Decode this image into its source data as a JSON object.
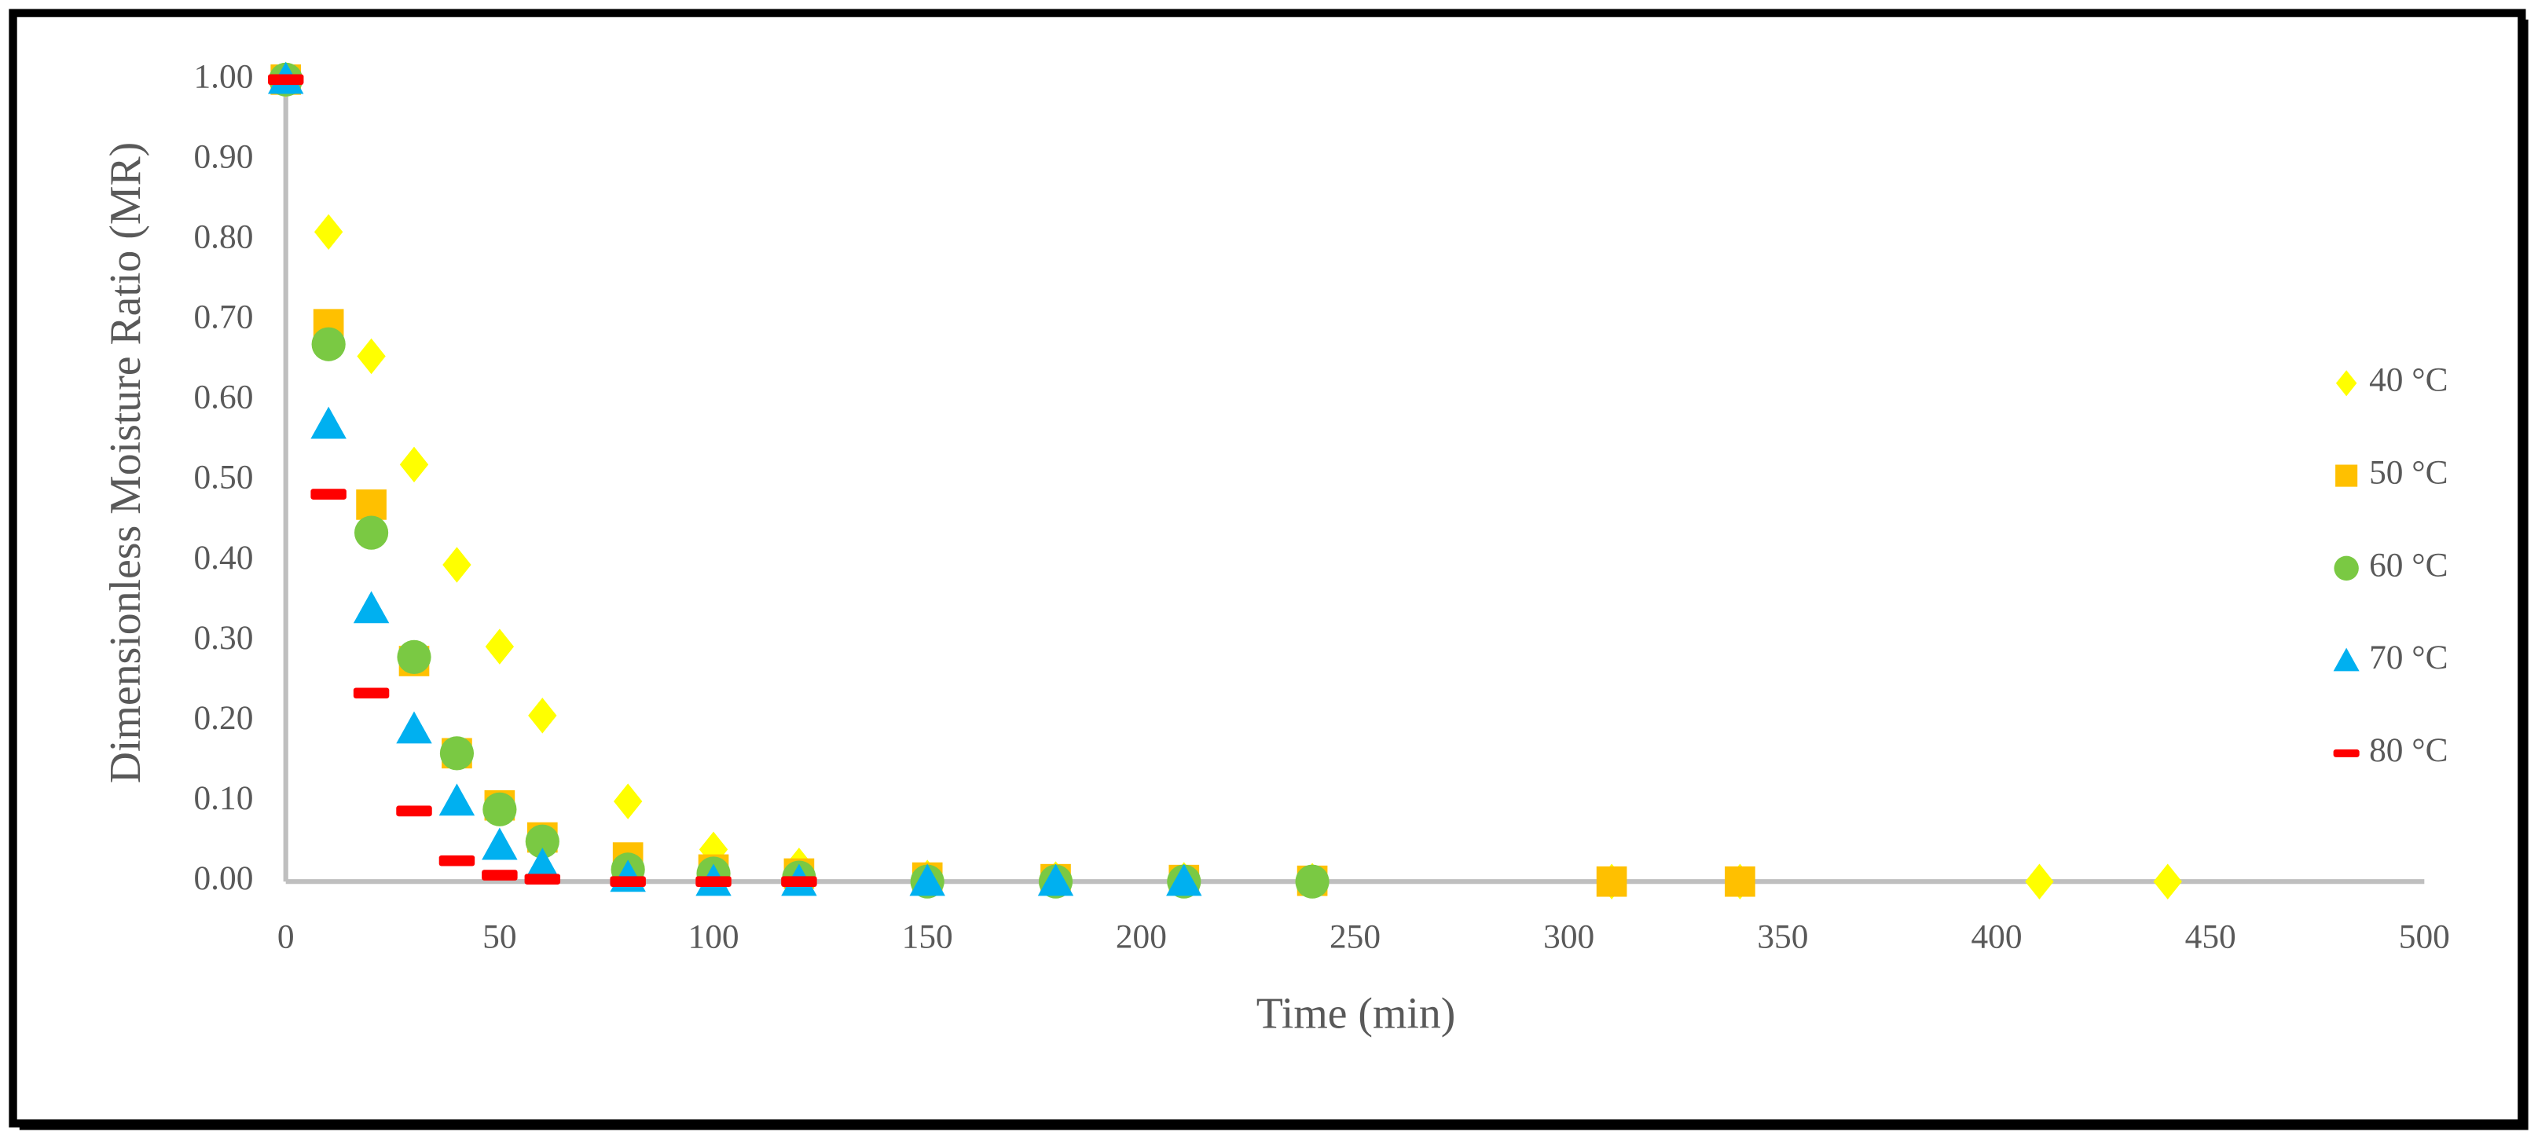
{
  "chart_data": {
    "type": "scatter",
    "xlabel": "Time (min)",
    "ylabel": "Dimensionless Moisture Ratio (MR)",
    "xlim": [
      0,
      500
    ],
    "xticks": [
      0,
      50,
      100,
      150,
      200,
      250,
      300,
      350,
      400,
      450,
      500
    ],
    "ylim": [
      0,
      1
    ],
    "yticks": [
      {
        "value": 0,
        "label": "0.00"
      },
      {
        "value": 0.1,
        "label": "0.10"
      },
      {
        "value": 0.2,
        "label": "0.20"
      },
      {
        "value": 0.3,
        "label": "0.30"
      },
      {
        "value": 0.4,
        "label": "0.40"
      },
      {
        "value": 0.5,
        "label": "0.50"
      },
      {
        "value": 0.6,
        "label": "0.60"
      },
      {
        "value": 0.7,
        "label": "0.70"
      },
      {
        "value": 0.8,
        "label": "0.80"
      },
      {
        "value": 0.9,
        "label": "0.90"
      },
      {
        "value": 1,
        "label": "1.00"
      }
    ],
    "grid": false,
    "legend": "right",
    "series": [
      {
        "name": "40 °C",
        "color": "#ffff00",
        "marker": "diamond",
        "x": [
          0,
          10,
          20,
          30,
          40,
          50,
          60,
          80,
          100,
          120,
          150,
          180,
          210,
          240,
          310,
          340,
          410,
          440
        ],
        "values": [
          1,
          0.81,
          0.655,
          0.52,
          0.395,
          0.293,
          0.207,
          0.1,
          0.04,
          0.02,
          0.005,
          0.003,
          0.002,
          0.001,
          0,
          0,
          0,
          0
        ]
      },
      {
        "name": "50 °C",
        "color": "#ffc000",
        "marker": "square",
        "x": [
          0,
          10,
          20,
          30,
          40,
          50,
          60,
          80,
          100,
          120,
          150,
          180,
          210,
          240,
          310,
          340
        ],
        "values": [
          1,
          0.695,
          0.47,
          0.275,
          0.16,
          0.095,
          0.055,
          0.03,
          0.015,
          0.01,
          0.005,
          0.003,
          0.002,
          0.001,
          0,
          0
        ]
      },
      {
        "name": "60 °C",
        "color": "#7ac943",
        "marker": "circle",
        "x": [
          0,
          10,
          20,
          30,
          40,
          50,
          60,
          80,
          100,
          120,
          150,
          180,
          210,
          240
        ],
        "values": [
          1,
          0.67,
          0.435,
          0.28,
          0.16,
          0.09,
          0.05,
          0.015,
          0.01,
          0.005,
          0,
          0,
          0,
          0
        ]
      },
      {
        "name": "70 °C",
        "color": "#00b0f0",
        "marker": "triangle",
        "x": [
          0,
          10,
          20,
          30,
          40,
          50,
          60,
          80,
          100,
          120,
          150,
          180,
          210
        ],
        "values": [
          1,
          0.57,
          0.34,
          0.19,
          0.1,
          0.045,
          0.02,
          0.005,
          0,
          0,
          0,
          0,
          0
        ]
      },
      {
        "name": "80 °C",
        "color": "#ff0000",
        "marker": "dash",
        "x": [
          0,
          10,
          20,
          30,
          40,
          50,
          60,
          80,
          100,
          120
        ],
        "values": [
          1,
          0.483,
          0.235,
          0.088,
          0.026,
          0.008,
          0.003,
          0,
          0,
          0
        ]
      }
    ]
  }
}
